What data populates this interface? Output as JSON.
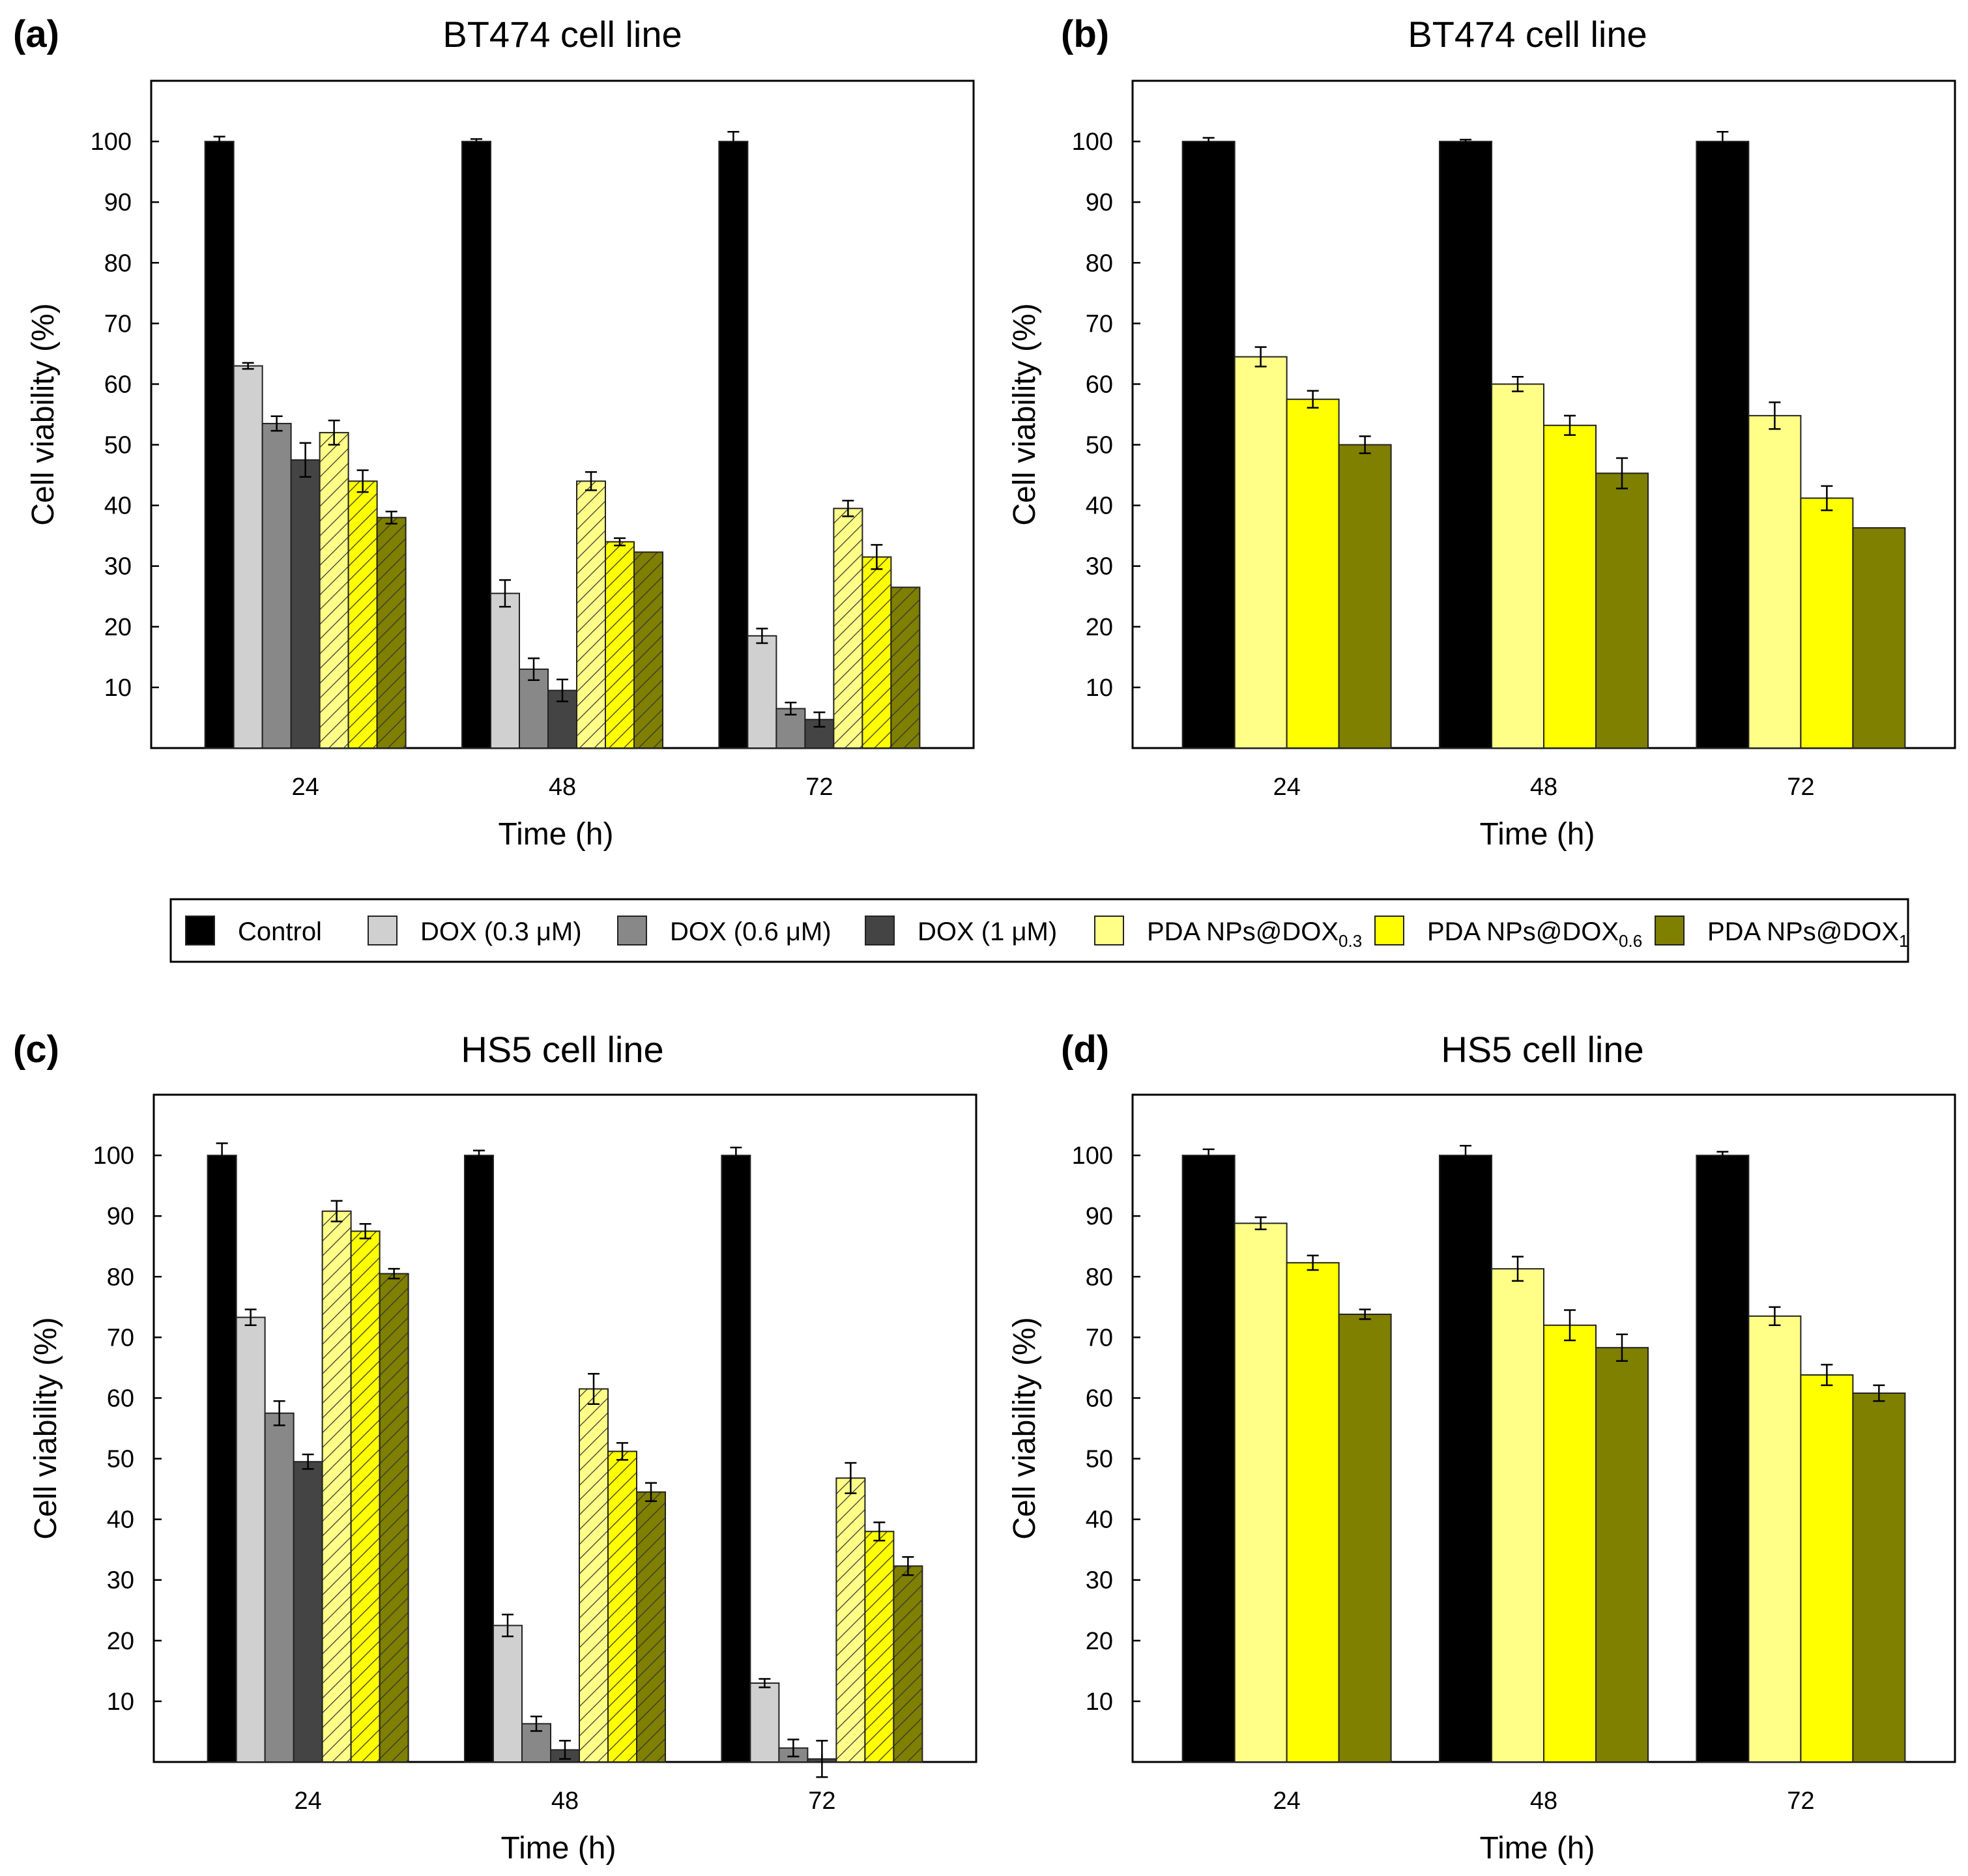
{
  "colors": {
    "control": "#000000",
    "dox_0_3": "#d0d0d0",
    "dox_0_6": "#888888",
    "dox_1": "#444444",
    "pda_0_3": "#ffff88",
    "pda_0_6": "#ffff00",
    "pda_1": "#7f7f00"
  },
  "legend": {
    "items": [
      {
        "key": "control",
        "label": "Control",
        "sub": "",
        "hatched": false
      },
      {
        "key": "dox_0_3",
        "label": "DOX (0.3 μM)",
        "sub": "",
        "hatched": false
      },
      {
        "key": "dox_0_6",
        "label": "DOX (0.6 μM)",
        "sub": "",
        "hatched": false
      },
      {
        "key": "dox_1",
        "label": "DOX (1 μM)",
        "sub": "",
        "hatched": false
      },
      {
        "key": "pda_0_3",
        "label": "PDA NPs@DOX",
        "sub": "0.3",
        "hatched": false
      },
      {
        "key": "pda_0_6",
        "label": "PDA NPs@DOX",
        "sub": "0.6",
        "hatched": false
      },
      {
        "key": "pda_1",
        "label": "PDA NPs@DOX",
        "sub": "1",
        "hatched": false
      }
    ]
  },
  "chart_data": [
    {
      "panel": "(a)",
      "type": "bar",
      "title": "BT474 cell line",
      "xlabel": "Time (h)",
      "ylabel": "Cell viability (%)",
      "ylim": [
        0,
        110
      ],
      "yticks": [
        10,
        20,
        30,
        40,
        50,
        60,
        70,
        80,
        90,
        100
      ],
      "categories": [
        "24",
        "48",
        "72"
      ],
      "series": [
        {
          "name": "Control",
          "key": "control",
          "hatched": false,
          "values": [
            100,
            100,
            100
          ],
          "errors": [
            0.8,
            0.4,
            1.6
          ]
        },
        {
          "name": "DOX (0.3 μM)",
          "key": "dox_0_3",
          "hatched": false,
          "values": [
            63,
            25.5,
            18.5
          ],
          "errors": [
            0.5,
            2.2,
            1.2
          ]
        },
        {
          "name": "DOX (0.6 μM)",
          "key": "dox_0_6",
          "hatched": false,
          "values": [
            53.5,
            13,
            6.5
          ],
          "errors": [
            1.2,
            1.8,
            1.0
          ]
        },
        {
          "name": "DOX (1 μM)",
          "key": "dox_1",
          "hatched": false,
          "values": [
            47.5,
            9.5,
            4.7
          ],
          "errors": [
            2.8,
            1.8,
            1.2
          ]
        },
        {
          "name": "PDA NPs@DOX0.3",
          "key": "pda_0_3",
          "hatched": true,
          "values": [
            52,
            44,
            39.5
          ],
          "errors": [
            2.0,
            1.5,
            1.3
          ]
        },
        {
          "name": "PDA NPs@DOX0.6",
          "key": "pda_0_6",
          "hatched": true,
          "values": [
            44,
            34,
            31.5
          ],
          "errors": [
            1.8,
            0.6,
            2.0
          ]
        },
        {
          "name": "PDA NPs@DOX1",
          "key": "pda_1",
          "hatched": true,
          "values": [
            38,
            32.3,
            26.5
          ],
          "errors": [
            1.0,
            0.0,
            0.0
          ]
        }
      ]
    },
    {
      "panel": "(b)",
      "type": "bar",
      "title": "BT474 cell line",
      "xlabel": "Time (h)",
      "ylabel": "Cell viability (%)",
      "ylim": [
        0,
        110
      ],
      "yticks": [
        10,
        20,
        30,
        40,
        50,
        60,
        70,
        80,
        90,
        100
      ],
      "categories": [
        "24",
        "48",
        "72"
      ],
      "series": [
        {
          "name": "Control",
          "key": "control",
          "hatched": false,
          "values": [
            100,
            100,
            100
          ],
          "errors": [
            0.6,
            0.3,
            1.6
          ]
        },
        {
          "name": "PDA NPs@DOX0.3",
          "key": "pda_0_3",
          "hatched": false,
          "values": [
            64.5,
            60,
            54.8
          ],
          "errors": [
            1.6,
            1.2,
            2.2
          ]
        },
        {
          "name": "PDA NPs@DOX0.6",
          "key": "pda_0_6",
          "hatched": false,
          "values": [
            57.5,
            53.2,
            41.2
          ],
          "errors": [
            1.4,
            1.6,
            2.0
          ]
        },
        {
          "name": "PDA NPs@DOX1",
          "key": "pda_1",
          "hatched": false,
          "values": [
            50,
            45.3,
            36.3
          ],
          "errors": [
            1.4,
            2.5,
            0.0
          ]
        }
      ]
    },
    {
      "panel": "(c)",
      "type": "bar",
      "title": "HS5 cell line",
      "xlabel": "Time (h)",
      "ylabel": "Cell viability (%)",
      "ylim": [
        0,
        110
      ],
      "yticks": [
        10,
        20,
        30,
        40,
        50,
        60,
        70,
        80,
        90,
        100
      ],
      "categories": [
        "24",
        "48",
        "72"
      ],
      "series": [
        {
          "name": "Control",
          "key": "control",
          "hatched": false,
          "values": [
            100,
            100,
            100
          ],
          "errors": [
            2.0,
            0.8,
            1.3
          ]
        },
        {
          "name": "DOX (0.3 μM)",
          "key": "dox_0_3",
          "hatched": false,
          "values": [
            73.3,
            22.5,
            13
          ],
          "errors": [
            1.3,
            1.8,
            0.7
          ]
        },
        {
          "name": "DOX (0.6 μM)",
          "key": "dox_0_6",
          "hatched": false,
          "values": [
            57.5,
            6.3,
            2.3
          ],
          "errors": [
            2.0,
            1.2,
            1.4
          ]
        },
        {
          "name": "DOX (1 μM)",
          "key": "dox_1",
          "hatched": false,
          "values": [
            49.5,
            2,
            0.5
          ],
          "errors": [
            1.2,
            1.5,
            3.0
          ]
        },
        {
          "name": "PDA NPs@DOX0.3",
          "key": "pda_0_3",
          "hatched": true,
          "values": [
            90.8,
            61.5,
            46.8
          ],
          "errors": [
            1.7,
            2.5,
            2.5
          ]
        },
        {
          "name": "PDA NPs@DOX0.6",
          "key": "pda_0_6",
          "hatched": true,
          "values": [
            87.5,
            51.2,
            38
          ],
          "errors": [
            1.2,
            1.4,
            1.5
          ]
        },
        {
          "name": "PDA NPs@DOX1",
          "key": "pda_1",
          "hatched": true,
          "values": [
            80.5,
            44.5,
            32.3
          ],
          "errors": [
            0.8,
            1.5,
            1.5
          ]
        }
      ]
    },
    {
      "panel": "(d)",
      "type": "bar",
      "title": "HS5 cell line",
      "xlabel": "Time (h)",
      "ylabel": "Cell viability (%)",
      "ylim": [
        0,
        110
      ],
      "yticks": [
        10,
        20,
        30,
        40,
        50,
        60,
        70,
        80,
        90,
        100
      ],
      "categories": [
        "24",
        "48",
        "72"
      ],
      "series": [
        {
          "name": "Control",
          "key": "control",
          "hatched": false,
          "values": [
            100,
            100,
            100
          ],
          "errors": [
            1.0,
            1.6,
            0.6
          ]
        },
        {
          "name": "PDA NPs@DOX0.3",
          "key": "pda_0_3",
          "hatched": false,
          "values": [
            88.8,
            81.3,
            73.5
          ],
          "errors": [
            1.0,
            2.0,
            1.5
          ]
        },
        {
          "name": "PDA NPs@DOX0.6",
          "key": "pda_0_6",
          "hatched": false,
          "values": [
            82.3,
            72,
            63.8
          ],
          "errors": [
            1.2,
            2.5,
            1.7
          ]
        },
        {
          "name": "PDA NPs@DOX1",
          "key": "pda_1",
          "hatched": false,
          "values": [
            73.8,
            68.3,
            60.8
          ],
          "errors": [
            0.8,
            2.2,
            1.3
          ]
        }
      ]
    }
  ]
}
